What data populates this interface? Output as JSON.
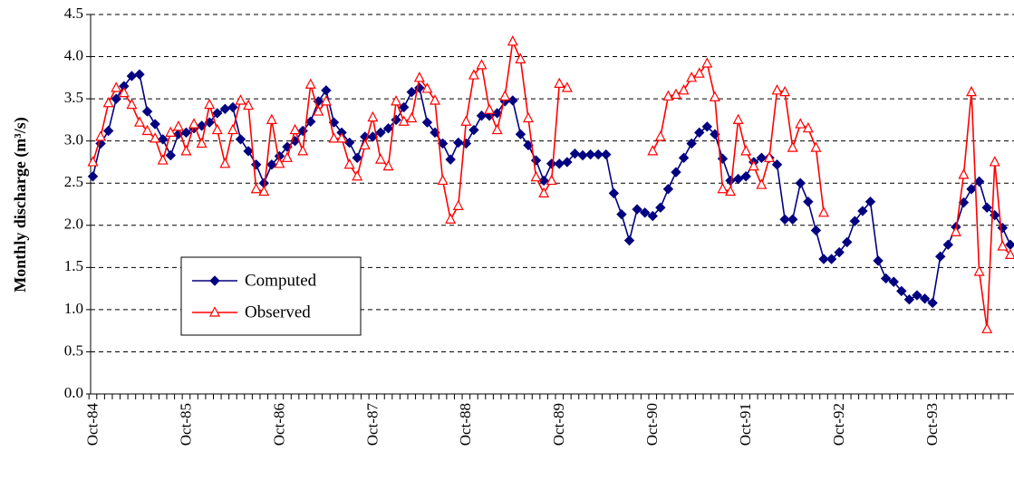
{
  "chart_data": {
    "type": "line",
    "y_label": "Monthly discharge (m³/s)",
    "categories": [
      "Oct-84",
      null,
      null,
      null,
      null,
      null,
      null,
      null,
      null,
      null,
      null,
      null,
      "Oct-85",
      null,
      null,
      null,
      null,
      null,
      null,
      null,
      null,
      null,
      null,
      null,
      "Oct-86",
      null,
      null,
      null,
      null,
      null,
      null,
      null,
      null,
      null,
      null,
      null,
      "Oct-87",
      null,
      null,
      null,
      null,
      null,
      null,
      null,
      null,
      null,
      null,
      null,
      "Oct-88",
      null,
      null,
      null,
      null,
      null,
      null,
      null,
      null,
      null,
      null,
      null,
      "Oct-89",
      null,
      null,
      null,
      null,
      null,
      null,
      null,
      null,
      null,
      null,
      null,
      "Oct-90",
      null,
      null,
      null,
      null,
      null,
      null,
      null,
      null,
      null,
      null,
      null,
      "Oct-91",
      null,
      null,
      null,
      null,
      null,
      null,
      null,
      null,
      null,
      null,
      null,
      "Oct-92",
      null,
      null,
      null,
      null,
      null,
      null,
      null,
      null,
      null,
      null,
      null,
      "Oct-93",
      null,
      null,
      null,
      null,
      null,
      null,
      null,
      null,
      null,
      null
    ],
    "series": [
      {
        "name": "Computed",
        "color": "#000080",
        "marker": "diamond",
        "values": [
          2.58,
          2.97,
          3.12,
          3.5,
          3.65,
          3.77,
          3.79,
          3.35,
          3.2,
          3.02,
          2.83,
          3.08,
          3.1,
          3.15,
          3.18,
          3.22,
          3.33,
          3.38,
          3.4,
          3.02,
          2.88,
          2.72,
          2.5,
          2.72,
          2.82,
          2.93,
          3.0,
          3.12,
          3.23,
          3.47,
          3.6,
          3.22,
          3.1,
          2.98,
          2.8,
          3.05,
          3.05,
          3.1,
          3.15,
          3.25,
          3.4,
          3.58,
          3.63,
          3.22,
          3.1,
          2.97,
          2.78,
          2.98,
          2.97,
          3.13,
          3.3,
          3.3,
          3.33,
          3.47,
          3.48,
          3.08,
          2.95,
          2.77,
          2.53,
          2.73,
          2.73,
          2.75,
          2.85,
          2.83,
          2.84,
          2.84,
          2.84,
          2.38,
          2.13,
          1.82,
          2.19,
          2.15,
          2.11,
          2.21,
          2.43,
          2.63,
          2.8,
          2.97,
          3.1,
          3.17,
          3.08,
          2.79,
          2.53,
          2.55,
          2.58,
          2.75,
          2.8,
          2.8,
          2.72,
          2.07,
          2.07,
          2.5,
          2.28,
          1.94,
          1.6,
          1.6,
          1.68,
          1.8,
          2.05,
          2.17,
          2.28,
          1.58,
          1.37,
          1.33,
          1.22,
          1.12,
          1.17,
          1.13,
          1.08,
          1.63,
          1.77,
          1.98,
          2.27,
          2.43,
          2.52,
          2.21,
          2.12,
          1.97,
          1.77
        ]
      },
      {
        "name": "Observed",
        "color": "#ff0000",
        "marker": "triangle",
        "values": [
          2.75,
          3.05,
          3.45,
          3.63,
          3.57,
          3.43,
          3.22,
          3.12,
          3.03,
          2.77,
          3.1,
          3.17,
          2.88,
          3.2,
          2.97,
          3.43,
          3.13,
          2.73,
          3.13,
          3.48,
          3.42,
          2.43,
          2.4,
          3.25,
          2.73,
          2.8,
          3.13,
          2.88,
          3.67,
          3.35,
          3.47,
          3.03,
          3.03,
          2.72,
          2.58,
          2.95,
          3.28,
          2.78,
          2.7,
          3.47,
          3.23,
          3.27,
          3.75,
          3.62,
          3.48,
          2.53,
          2.07,
          2.23,
          3.23,
          3.78,
          3.9,
          3.37,
          3.13,
          3.53,
          4.18,
          3.97,
          3.27,
          2.57,
          2.38,
          2.53,
          3.68,
          3.63,
          null,
          null,
          null,
          null,
          null,
          null,
          null,
          null,
          null,
          null,
          2.88,
          3.05,
          3.53,
          3.55,
          3.6,
          3.75,
          3.8,
          3.92,
          3.52,
          2.43,
          2.4,
          3.25,
          2.88,
          2.7,
          2.48,
          2.8,
          3.6,
          3.58,
          2.92,
          3.2,
          3.15,
          2.92,
          2.15,
          null,
          null,
          null,
          null,
          null,
          null,
          null,
          null,
          null,
          null,
          null,
          null,
          null,
          null,
          null,
          null,
          1.92,
          2.6,
          3.58,
          1.45,
          0.77,
          2.75,
          1.75,
          1.65
        ]
      }
    ],
    "ylim": [
      0,
      4.5
    ],
    "yticks": [
      {
        "value": 0,
        "label": "0.0"
      },
      {
        "value": 0.5,
        "label": "0.5"
      },
      {
        "value": 1,
        "label": "1.0"
      },
      {
        "value": 1.5,
        "label": "1.5"
      },
      {
        "value": 2,
        "label": "2.0"
      },
      {
        "value": 2.5,
        "label": "2.5"
      },
      {
        "value": 3,
        "label": "3.0"
      },
      {
        "value": 3.5,
        "label": "3.5"
      },
      {
        "value": 4,
        "label": "4.0"
      },
      {
        "value": 4.5,
        "label": "4.5"
      }
    ],
    "grid": true,
    "legend_position": "lower-left"
  }
}
